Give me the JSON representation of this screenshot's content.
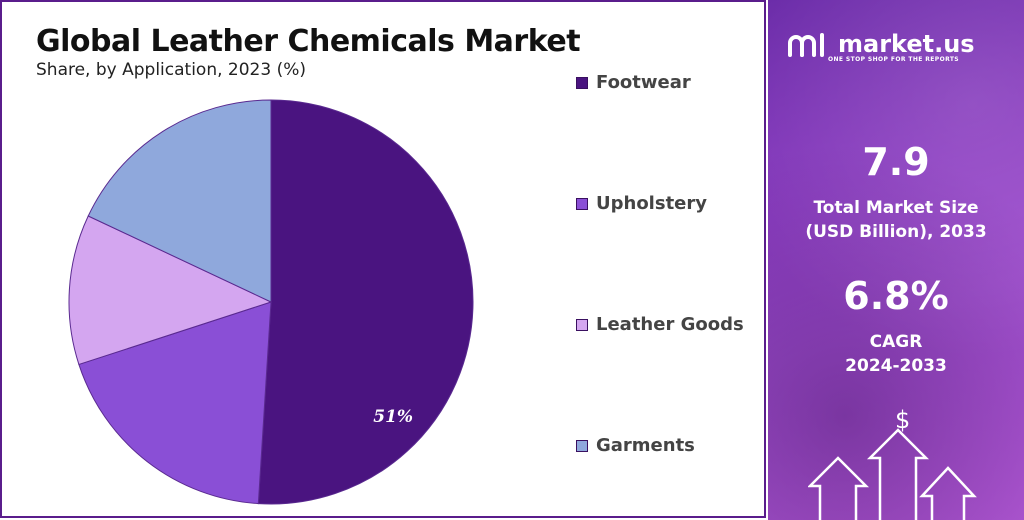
{
  "chart_data": {
    "type": "pie",
    "title": "Global Leather Chemicals Market",
    "subtitle": "Share, by Application, 2023 (%)",
    "categories": [
      "Footwear",
      "Upholstery",
      "Leather Goods",
      "Garments"
    ],
    "values": [
      51,
      19,
      12,
      18
    ],
    "data_labels": [
      "51%",
      "",
      "",
      ""
    ],
    "colors": [
      "#4a1480",
      "#8a4fd6",
      "#d4a6f0",
      "#8fa8dc"
    ],
    "legend_placement": "right"
  },
  "brand": {
    "name": "market.us",
    "tagline": "ONE STOP SHOP FOR THE REPORTS"
  },
  "stats": {
    "market_size_value": "7.9",
    "market_size_label_line1": "Total Market Size",
    "market_size_label_line2": "(USD Billion), 2033",
    "cagr_value": "6.8%",
    "cagr_label_line1": "CAGR",
    "cagr_label_line2": "2024-2033"
  },
  "icons": {
    "dollar_symbol": "$"
  }
}
